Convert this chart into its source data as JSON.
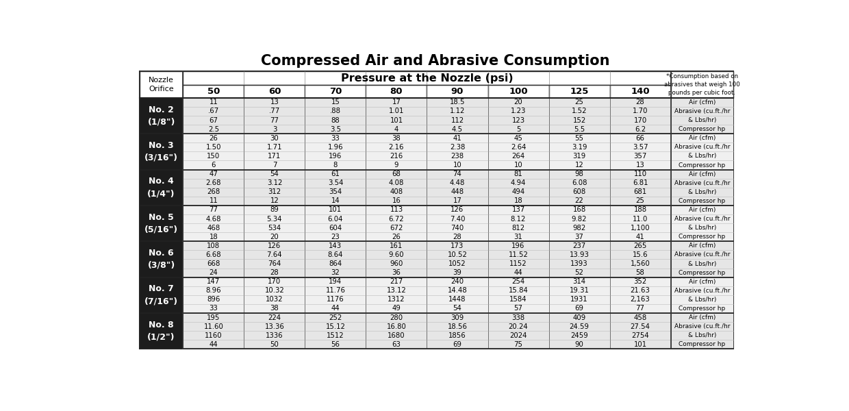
{
  "title": "Compressed Air and Abrasive Consumption",
  "header_pressure": "Pressure at the Nozzle (psi)",
  "pressures": [
    "50",
    "60",
    "70",
    "80",
    "90",
    "100",
    "125",
    "140"
  ],
  "footnote": "*Consumption based on\nabrasives that weigh 100\npounds per cubic foot.",
  "row_labels": [
    "No. 2\n(1/8\")",
    "No. 3\n(3/16\")",
    "No. 4\n(1/4\")",
    "No. 5\n(5/16\")",
    "No. 6\n(3/8\")",
    "No. 7\n(7/16\")",
    "No. 8\n(1/2\")"
  ],
  "row_data": [
    [
      [
        "11",
        "13",
        "15",
        "17",
        "18.5",
        "20",
        "25",
        "28"
      ],
      [
        ".67",
        ".77",
        ".88",
        "1.01",
        "1.12",
        "1.23",
        "1.52",
        "1.70"
      ],
      [
        "67",
        "77",
        "88",
        "101",
        "112",
        "123",
        "152",
        "170"
      ],
      [
        "2.5",
        "3",
        "3.5",
        "4",
        "4.5",
        "5",
        "5.5",
        "6.2"
      ]
    ],
    [
      [
        "26",
        "30",
        "33",
        "38",
        "41",
        "45",
        "55",
        "66"
      ],
      [
        "1.50",
        "1.71",
        "1.96",
        "2.16",
        "2.38",
        "2.64",
        "3.19",
        "3.57"
      ],
      [
        "150",
        "171",
        "196",
        "216",
        "238",
        "264",
        "319",
        "357"
      ],
      [
        "6",
        "7",
        "8",
        "9",
        "10",
        "10",
        "12",
        "13"
      ]
    ],
    [
      [
        "47",
        "54",
        "61",
        "68",
        "74",
        "81",
        "98",
        "110"
      ],
      [
        "2.68",
        "3.12",
        "3.54",
        "4.08",
        "4.48",
        "4.94",
        "6.08",
        "6.81"
      ],
      [
        "268",
        "312",
        "354",
        "408",
        "448",
        "494",
        "608",
        "681"
      ],
      [
        "11",
        "12",
        "14",
        "16",
        "17",
        "18",
        "22",
        "25"
      ]
    ],
    [
      [
        "77",
        "89",
        "101",
        "113",
        "126",
        "137",
        "168",
        "188"
      ],
      [
        "4.68",
        "5.34",
        "6.04",
        "6.72",
        "7.40",
        "8.12",
        "9.82",
        "11.0"
      ],
      [
        "468",
        "534",
        "604",
        "672",
        "740",
        "812",
        "982",
        "1,100"
      ],
      [
        "18",
        "20",
        "23",
        "26",
        "28",
        "31",
        "37",
        "41"
      ]
    ],
    [
      [
        "108",
        "126",
        "143",
        "161",
        "173",
        "196",
        "237",
        "265"
      ],
      [
        "6.68",
        "7.64",
        "8.64",
        "9.60",
        "10.52",
        "11.52",
        "13.93",
        "15.6"
      ],
      [
        "668",
        "764",
        "864",
        "960",
        "1052",
        "1152",
        "1393",
        "1,560"
      ],
      [
        "24",
        "28",
        "32",
        "36",
        "39",
        "44",
        "52",
        "58"
      ]
    ],
    [
      [
        "147",
        "170",
        "194",
        "217",
        "240",
        "254",
        "314",
        "352"
      ],
      [
        "8.96",
        "10.32",
        "11.76",
        "13.12",
        "14.48",
        "15.84",
        "19.31",
        "21.63"
      ],
      [
        "896",
        "1032",
        "1176",
        "1312",
        "1448",
        "1584",
        "1931",
        "2,163"
      ],
      [
        "33",
        "38",
        "44",
        "49",
        "54",
        "57",
        "69",
        "77"
      ]
    ],
    [
      [
        "195",
        "224",
        "252",
        "280",
        "309",
        "338",
        "409",
        "458"
      ],
      [
        "11.60",
        "13.36",
        "15.12",
        "16.80",
        "18.56",
        "20.24",
        "24.59",
        "27.54"
      ],
      [
        "1160",
        "1336",
        "1512",
        "1680",
        "1856",
        "2024",
        "2459",
        "2754"
      ],
      [
        "44",
        "50",
        "56",
        "63",
        "69",
        "75",
        "90",
        "101"
      ]
    ]
  ],
  "sub_labels_right": [
    "Air (cfm)",
    "Abrasive (cu.ft./hr",
    "& Lbs/hr)",
    "Compressor hp"
  ],
  "dark_bg": "#1c1c1c",
  "light_bg": "#e6e6e6",
  "white_bg": "#ffffff",
  "mid_bg": "#f0f0f0"
}
